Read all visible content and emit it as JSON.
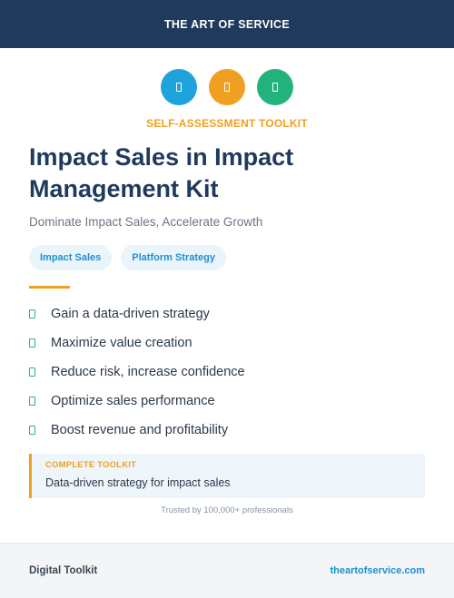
{
  "header": {
    "brand": "THE ART OF SERVICE"
  },
  "icons": [
    {
      "name": "chart-icon",
      "color": "#1ea3dd"
    },
    {
      "name": "target-icon",
      "color": "#f0a020"
    },
    {
      "name": "growth-icon",
      "color": "#22b37c"
    }
  ],
  "hero": {
    "kicker": "SELF-ASSESSMENT TOOLKIT",
    "title": "Impact Sales in Impact Management Kit",
    "subtitle": "Dominate Impact Sales, Accelerate Growth"
  },
  "tags": [
    "Impact Sales",
    "Platform Strategy"
  ],
  "benefits": [
    "Gain a data-driven strategy",
    "Maximize value creation",
    "Reduce risk, increase confidence",
    "Optimize sales performance",
    "Boost revenue and profitability"
  ],
  "callout": {
    "label": "COMPLETE TOOLKIT",
    "text": "Data-driven strategy for impact sales"
  },
  "trusted": "Trusted by 100,000+ professionals",
  "footer": {
    "left": "Digital Toolkit",
    "right": "theartofservice.com"
  },
  "colors": {
    "navy": "#1f3a5c",
    "accent": "#f0a020",
    "blue": "#1e8fd0",
    "green": "#2bb37c"
  }
}
